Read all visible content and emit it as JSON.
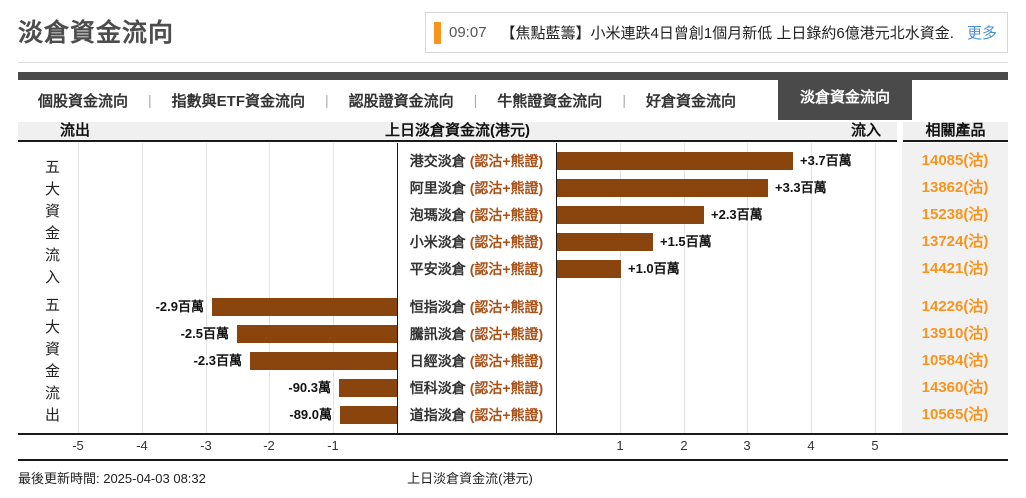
{
  "page": {
    "title": "淡倉資金流向"
  },
  "ticker": {
    "time": "09:07",
    "headline": "【焦點藍籌】小米連跌4日曾創1個月新低 上日錄約6億港元北水資金...",
    "more_label": "更多",
    "accent_color": "#f7941e"
  },
  "tabs": {
    "separator": "|",
    "items": [
      {
        "label": "個股資金流向",
        "active": false
      },
      {
        "label": "指數與ETF資金流向",
        "active": false
      },
      {
        "label": "認股證資金流向",
        "active": false
      },
      {
        "label": "牛熊證資金流向",
        "active": false
      },
      {
        "label": "好倉資金流向",
        "active": false
      },
      {
        "label": "淡倉資金流向",
        "active": true
      }
    ]
  },
  "chart_header": {
    "left": "流出",
    "center": "上日淡倉資金流(港元)",
    "right": "流入",
    "products": "相關產品"
  },
  "chart_data": {
    "type": "bar",
    "orientation": "horizontal",
    "title": "上日淡倉資金流(港元)",
    "unit": "百萬港元",
    "xlim": [
      -5,
      5
    ],
    "axis_ticks_left": [
      -5,
      -4,
      -3,
      -2,
      -1
    ],
    "axis_ticks_right": [
      1,
      2,
      3,
      4,
      5
    ],
    "grid": true,
    "bar_color": "#8a450f",
    "group_labels": {
      "inflow": "五大資金流入",
      "outflow": "五大資金流出"
    },
    "rows": [
      {
        "group": "inflow",
        "name": "港交淡倉",
        "suffix": "(認沽+熊證)",
        "value_millions": 3.7,
        "value_label": "+3.7百萬",
        "product": "14085(沽)"
      },
      {
        "group": "inflow",
        "name": "阿里淡倉",
        "suffix": "(認沽+熊證)",
        "value_millions": 3.3,
        "value_label": "+3.3百萬",
        "product": "13862(沽)"
      },
      {
        "group": "inflow",
        "name": "泡瑪淡倉",
        "suffix": "(認沽+熊證)",
        "value_millions": 2.3,
        "value_label": "+2.3百萬",
        "product": "15238(沽)"
      },
      {
        "group": "inflow",
        "name": "小米淡倉",
        "suffix": "(認沽+熊證)",
        "value_millions": 1.5,
        "value_label": "+1.5百萬",
        "product": "13724(沽)"
      },
      {
        "group": "inflow",
        "name": "平安淡倉",
        "suffix": "(認沽+熊證)",
        "value_millions": 1.0,
        "value_label": "+1.0百萬",
        "product": "14421(沽)"
      },
      {
        "group": "outflow",
        "name": "恒指淡倉",
        "suffix": "(認沽+熊證)",
        "value_millions": -2.9,
        "value_label": "-2.9百萬",
        "product": "14226(沽)"
      },
      {
        "group": "outflow",
        "name": "騰訊淡倉",
        "suffix": "(認沽+熊證)",
        "value_millions": -2.5,
        "value_label": "-2.5百萬",
        "product": "13910(沽)"
      },
      {
        "group": "outflow",
        "name": "日經淡倉",
        "suffix": "(認沽+熊證)",
        "value_millions": -2.3,
        "value_label": "-2.3百萬",
        "product": "10584(沽)"
      },
      {
        "group": "outflow",
        "name": "恒科淡倉",
        "suffix": "(認沽+熊證)",
        "value_millions": -0.903,
        "value_label": "-90.3萬",
        "product": "14360(沽)"
      },
      {
        "group": "outflow",
        "name": "道指淡倉",
        "suffix": "(認沽+熊證)",
        "value_millions": -0.89,
        "value_label": "-89.0萬",
        "product": "10565(沽)"
      }
    ]
  },
  "footer": {
    "updated_label": "最後更新時間: 2025-04-03 08:32",
    "axis_title": "上日淡倉資金流(港元)"
  }
}
